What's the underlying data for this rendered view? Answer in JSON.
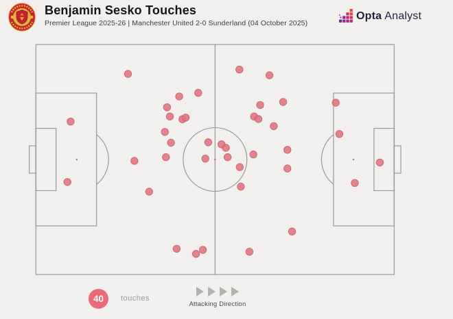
{
  "header": {
    "title": "Benjamin Sesko Touches",
    "subtitle": "Premier League 2025-26 | Manchester United 2-0 Sunderland (04 October 2025)",
    "crest": "manchester-united-crest",
    "brand_bold": "Opta",
    "brand_light": "Analyst"
  },
  "legend": {
    "touches_count": "40",
    "touches_label": "touches",
    "direction_label": "Attacking Direction"
  },
  "colors": {
    "touch_fill": "#e2707b",
    "touch_stroke": "#ca5a66",
    "badge": "#ea6a76",
    "pitch_line": "#939393",
    "background": "#f1f0ee",
    "brand_navy": "#251f3d"
  },
  "chart_data": {
    "type": "scatter",
    "title": "Benjamin Sesko Touches",
    "competition": "Premier League 2025-26",
    "match": "Manchester United 2-0 Sunderland",
    "date": "04 October 2025",
    "total_touches": 40,
    "legend_label": "40 touches",
    "direction": "Attacking Direction: left to right",
    "coordinate_system": "percent of pitch: x 0=own goal line, 100=opponent goal line; y 0=top touchline, 100=bottom touchline",
    "xlim": [
      0,
      100
    ],
    "ylim": [
      0,
      100
    ],
    "points": [
      [
        25.7,
        12.8
      ],
      [
        9.7,
        33.5
      ],
      [
        8.8,
        59.8
      ],
      [
        31.6,
        64.0
      ],
      [
        27.5,
        50.6
      ],
      [
        45.3,
        21.0
      ],
      [
        40.0,
        22.6
      ],
      [
        36.6,
        27.3
      ],
      [
        37.4,
        31.3
      ],
      [
        40.9,
        32.5
      ],
      [
        41.8,
        31.8
      ],
      [
        36.0,
        38.0
      ],
      [
        37.7,
        42.7
      ],
      [
        36.3,
        49.0
      ],
      [
        48.1,
        42.5
      ],
      [
        51.8,
        43.4
      ],
      [
        53.0,
        44.9
      ],
      [
        53.5,
        49.0
      ],
      [
        47.3,
        49.6
      ],
      [
        39.3,
        88.8
      ],
      [
        44.7,
        91.0
      ],
      [
        46.6,
        89.3
      ],
      [
        56.8,
        10.9
      ],
      [
        65.2,
        13.4
      ],
      [
        69.0,
        25.0
      ],
      [
        62.6,
        26.3
      ],
      [
        60.9,
        31.3
      ],
      [
        62.1,
        32.4
      ],
      [
        66.4,
        35.5
      ],
      [
        70.2,
        45.8
      ],
      [
        60.7,
        47.8
      ],
      [
        56.9,
        53.3
      ],
      [
        57.2,
        61.8
      ],
      [
        70.2,
        53.9
      ],
      [
        71.5,
        81.3
      ],
      [
        59.6,
        90.1
      ],
      [
        83.7,
        25.3
      ],
      [
        84.7,
        38.9
      ],
      [
        96.0,
        51.3
      ],
      [
        89.0,
        60.2
      ]
    ]
  }
}
